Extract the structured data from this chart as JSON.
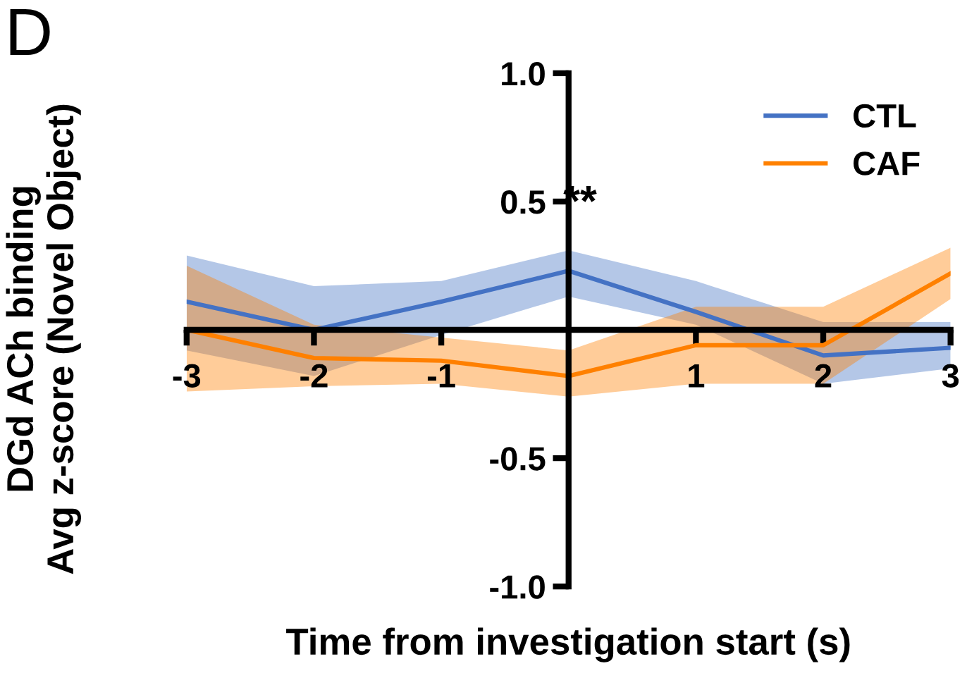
{
  "chart_data": {
    "type": "line",
    "xlabel": "Time from investigation start (s)",
    "ylabel": "DGd ACh binding\nAvg z-score (Novel Object)",
    "x": [
      -3,
      -2,
      -1,
      0,
      1,
      2,
      3
    ],
    "series": [
      {
        "name": "CTL",
        "color": "#4472c4",
        "values": [
          0.11,
          0.0,
          0.11,
          0.23,
          0.07,
          -0.1,
          -0.07
        ],
        "lower": [
          -0.08,
          -0.18,
          -0.02,
          0.13,
          0.02,
          -0.21,
          -0.15
        ],
        "upper": [
          0.29,
          0.17,
          0.19,
          0.31,
          0.19,
          0.03,
          0.03
        ]
      },
      {
        "name": "CAF",
        "color": "#ff8000",
        "values": [
          0.0,
          -0.11,
          -0.12,
          -0.18,
          -0.06,
          -0.06,
          0.22
        ],
        "lower": [
          -0.24,
          -0.22,
          -0.21,
          -0.26,
          -0.21,
          -0.21,
          0.12
        ],
        "upper": [
          0.25,
          0.02,
          -0.03,
          -0.08,
          0.09,
          0.09,
          0.32
        ]
      }
    ],
    "xlim": [
      -3,
      3
    ],
    "ylim": [
      -1.0,
      1.0
    ],
    "xticks": [
      -3,
      -2,
      -1,
      1,
      2,
      3
    ],
    "yticks": [
      {
        "value": -1.0,
        "label": "-1.0"
      },
      {
        "value": -0.5,
        "label": "-0.5"
      },
      {
        "value": 0.5,
        "label": "0.5"
      },
      {
        "value": 1.0,
        "label": "1.0"
      }
    ],
    "annotations": [
      "**",
      "D"
    ],
    "legend": "top right",
    "grid": false,
    "marker": "none",
    "line_style": "solid"
  }
}
